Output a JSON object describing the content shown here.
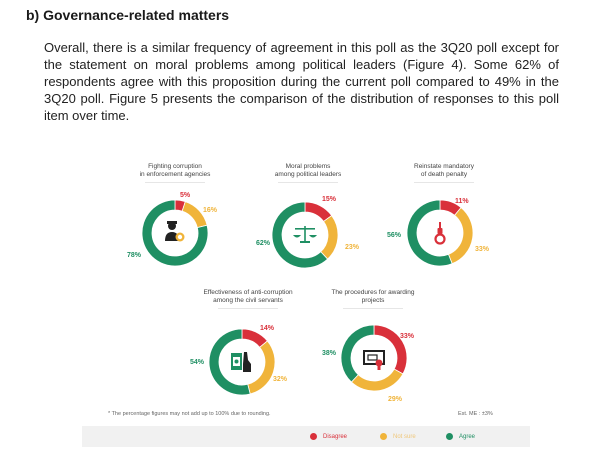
{
  "section_heading": "b) Governance-related matters",
  "paragraph": "Overall, there is a similar frequency of agreement in this poll as the 3Q20 poll except for the statement on moral problems among political leaders (Figure 4). Some 62% of respondents agree with this proposition during the current poll compared to 49% in the 3Q20 poll. Figure 5 presents the comparison of the distribution of responses to this poll item over time.",
  "colors": {
    "disagree": "#d9303a",
    "not_sure": "#f0b43a",
    "agree": "#1f8f63"
  },
  "chart_data": {
    "type": "pie",
    "variant": "donut",
    "series_names": [
      "Disagree",
      "Not sure",
      "Agree"
    ],
    "charts": [
      {
        "title_line1": "Fighting corruption",
        "title_line2": "in enforcement agencies",
        "icon": "police-officer-icon",
        "values": [
          5,
          16,
          78
        ],
        "labels": [
          "5%",
          "16%",
          "78%"
        ]
      },
      {
        "title_line1": "Moral problems",
        "title_line2": "among political leaders",
        "icon": "scales-of-justice-icon",
        "values": [
          15,
          23,
          62
        ],
        "labels": [
          "15%",
          "23%",
          "62%"
        ]
      },
      {
        "title_line1": "Reinstate mandatory",
        "title_line2": "of death penalty",
        "icon": "noose-icon",
        "values": [
          11,
          33,
          56
        ],
        "labels": [
          "11%",
          "33%",
          "56%"
        ]
      },
      {
        "title_line1": "Effectiveness of anti-corruption",
        "title_line2": "among the civil servants",
        "icon": "money-bribe-hand-icon",
        "values": [
          14,
          32,
          54
        ],
        "labels": [
          "14%",
          "32%",
          "54%"
        ]
      },
      {
        "title_line1": "The procedures for awarding",
        "title_line2": "projects",
        "icon": "certificate-icon",
        "values": [
          33,
          29,
          38
        ],
        "labels": [
          "33%",
          "29%",
          "38%"
        ]
      }
    ],
    "footnote": "* The percentage figures may not add up to 100% due to rounding.",
    "margin_of_error": "Est. ME : ±3%",
    "legend": [
      {
        "label": "Disagree",
        "color": "#d9303a"
      },
      {
        "label": "Not sure",
        "color": "#f0b43a"
      },
      {
        "label": "Agree",
        "color": "#1f8f63"
      }
    ],
    "legend_position": "bottom-right"
  }
}
